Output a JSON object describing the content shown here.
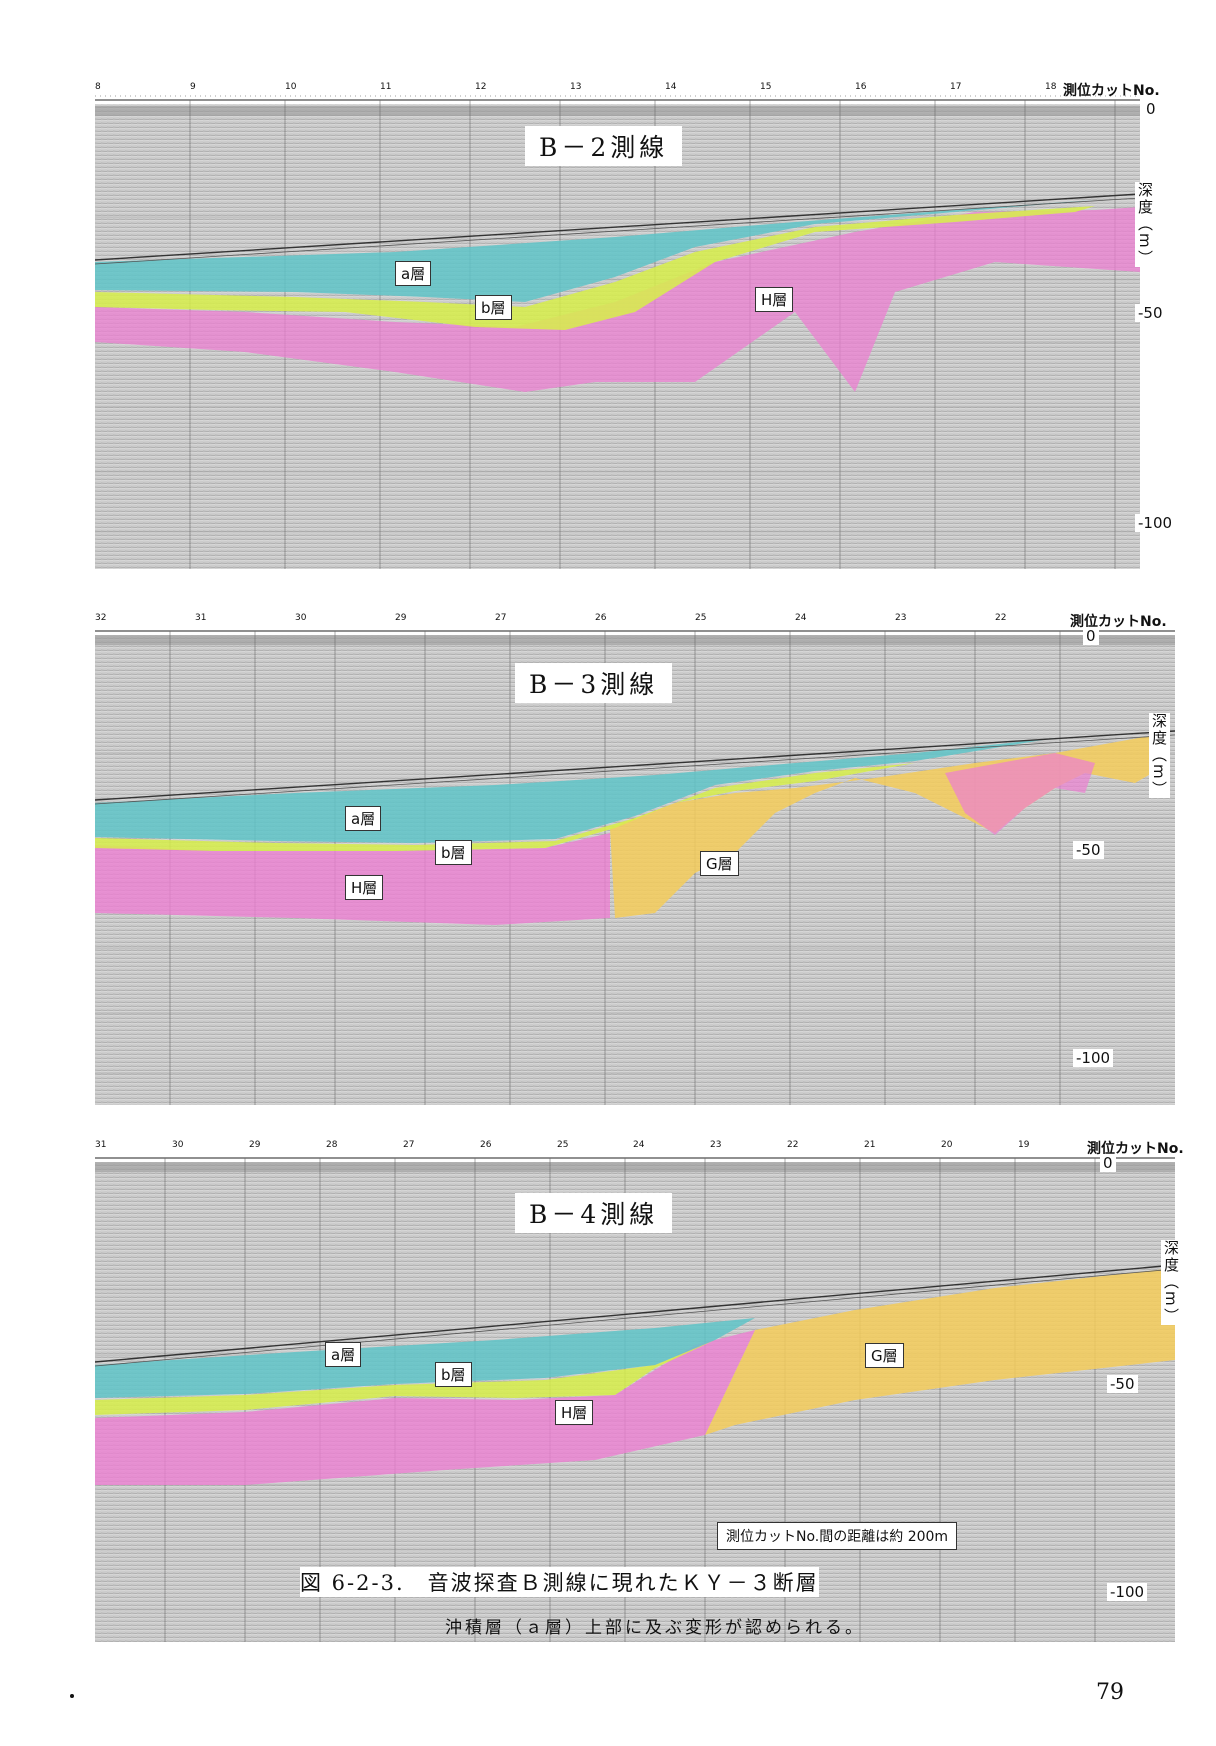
{
  "depth_unit_label": "深度（m）",
  "cut_no_label": "測位カットNo.",
  "panels": [
    {
      "title": "B－2測線",
      "cut_numbers": [
        "8",
        "9",
        "10",
        "11",
        "12",
        "13",
        "14",
        "15",
        "16",
        "17",
        "18"
      ],
      "layers": [
        "a層",
        "b層",
        "H層"
      ],
      "depth_labels": [
        "0",
        "-50",
        "-100"
      ]
    },
    {
      "title": "B－3測線",
      "cut_numbers": [
        "32",
        "31",
        "30",
        "29",
        "27",
        "26",
        "25",
        "24",
        "23",
        "22"
      ],
      "layers": [
        "a層",
        "b層",
        "H層",
        "G層"
      ],
      "depth_labels": [
        "0",
        "-50",
        "-100"
      ]
    },
    {
      "title": "B－4測線",
      "cut_numbers": [
        "31",
        "30",
        "29",
        "28",
        "27",
        "26",
        "25",
        "24",
        "23",
        "22",
        "21",
        "20",
        "19"
      ],
      "layers": [
        "a層",
        "b層",
        "H層",
        "G層"
      ],
      "depth_labels": [
        "0",
        "-50",
        "-100"
      ]
    }
  ],
  "distance_note": "測位カットNo.間の距離は約 200m",
  "caption": "図 6-2-3.　音波探査Ｂ測線に現れたＫＹ－３断層",
  "subcaption": "沖積層（ａ層）上部に及ぶ変形が認められる。",
  "page_number": "79",
  "colors": {
    "a_layer": "#5fc4c8",
    "b_layer": "#d7ef4a",
    "h_layer": "#ec7fd2",
    "g_layer": "#f4cd5a",
    "seismic_bg": "#c7c7c7"
  }
}
